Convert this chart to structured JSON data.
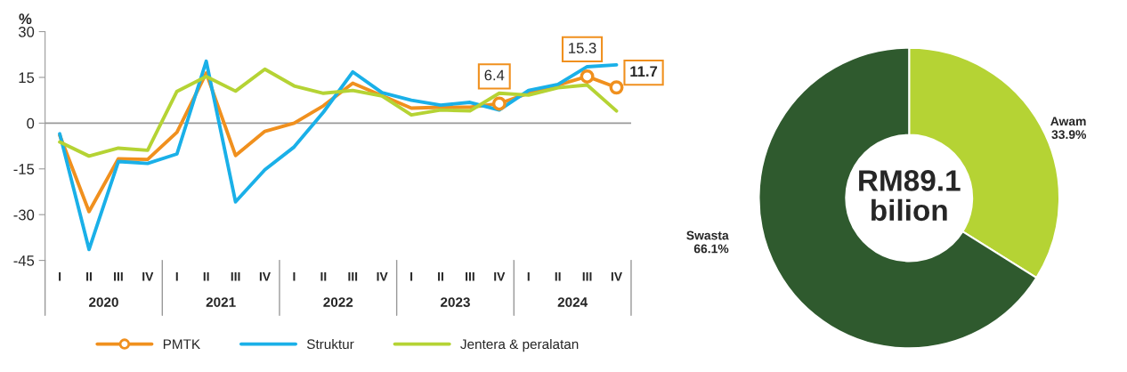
{
  "chart_data": [
    {
      "type": "line",
      "ylabel": "%",
      "categories": [
        "I",
        "II",
        "III",
        "IV",
        "I",
        "II",
        "III",
        "IV",
        "I",
        "II",
        "III",
        "IV",
        "I",
        "II",
        "III",
        "IV",
        "I",
        "II",
        "III",
        "IV"
      ],
      "annotations": [
        "2020",
        "2021",
        "2022",
        "2023",
        "2024"
      ],
      "ylim": [
        -45,
        30
      ],
      "yticks": [
        -45,
        -30,
        -15,
        0,
        15,
        30
      ],
      "grid": false,
      "legend": "bottom",
      "ref_lines": [
        {
          "axis": "y",
          "value": 0,
          "color": "#999999"
        }
      ],
      "series": [
        {
          "name": "PMTK",
          "color": "#f0901e",
          "values": [
            -4,
            -29,
            -11.7,
            -11.9,
            -3,
            16.4,
            -10.6,
            -2.7,
            0,
            5.7,
            13.1,
            9,
            4.9,
            5.2,
            5.2,
            6.4,
            9.8,
            12.5,
            15.3,
            11.7
          ],
          "value_labels": [
            null,
            null,
            null,
            null,
            null,
            null,
            null,
            null,
            null,
            null,
            null,
            null,
            null,
            null,
            null,
            "6.4",
            null,
            null,
            "15.3",
            "11.7"
          ]
        },
        {
          "name": "Struktur",
          "color": "#1ab0e8",
          "values": [
            -3.5,
            -41.4,
            -12.6,
            -13.2,
            -10.1,
            20.3,
            -25.8,
            -15.3,
            -7.8,
            3.6,
            16.8,
            10,
            7.5,
            5.9,
            6.8,
            4.3,
            10.7,
            12.7,
            18.5,
            19.1
          ]
        },
        {
          "name": "Jentera & peralatan",
          "color": "#b5d334",
          "values": [
            -6.2,
            -10.8,
            -8.2,
            -8.9,
            10.4,
            15.3,
            10.5,
            17.7,
            12.2,
            9.8,
            10.7,
            8.9,
            2.7,
            4.3,
            4,
            9.8,
            9.2,
            11.6,
            12.5,
            4
          ]
        }
      ]
    },
    {
      "type": "donut",
      "categories": [
        "Awam",
        "Swasta"
      ],
      "values": [
        33.9,
        66.1
      ],
      "colors": [
        "#b5d334",
        "#2f5a2e"
      ],
      "value_labels": [
        "33.9%",
        "66.1%"
      ],
      "annotations": [
        "RM89.1\nbilion"
      ]
    }
  ]
}
